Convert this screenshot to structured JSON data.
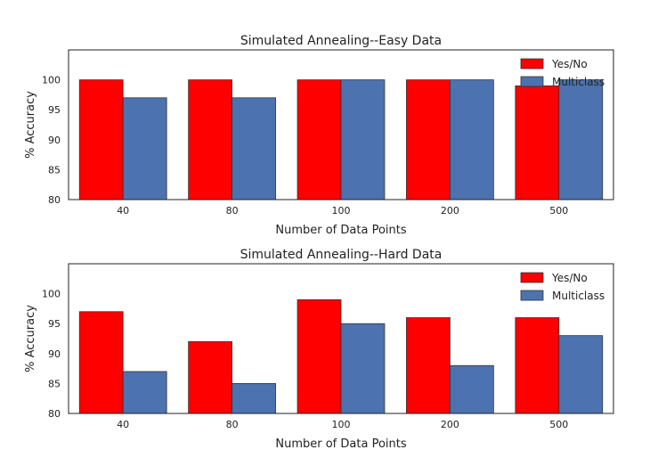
{
  "chart_data": [
    {
      "type": "bar",
      "title": "Simulated Annealing--Easy Data",
      "xlabel": "Number of Data Points",
      "ylabel": "% Accuracy",
      "categories": [
        "40",
        "80",
        "100",
        "200",
        "500"
      ],
      "ylim": [
        80,
        105
      ],
      "yticks": [
        80,
        85,
        90,
        95,
        100
      ],
      "grid": false,
      "legend_position": "top-right",
      "series": [
        {
          "name": "Yes/No",
          "color": "#ff0000",
          "values": [
            100,
            100,
            100,
            100,
            99
          ]
        },
        {
          "name": "Multiclass",
          "color": "#4c72b0",
          "values": [
            97,
            97,
            100,
            100,
            100
          ]
        }
      ]
    },
    {
      "type": "bar",
      "title": "Simulated Annealing--Hard Data",
      "xlabel": "Number of Data Points",
      "ylabel": "% Accuracy",
      "categories": [
        "40",
        "80",
        "100",
        "200",
        "500"
      ],
      "ylim": [
        80,
        105
      ],
      "yticks": [
        80,
        85,
        90,
        95,
        100
      ],
      "grid": false,
      "legend_position": "top-right",
      "series": [
        {
          "name": "Yes/No",
          "color": "#ff0000",
          "values": [
            97,
            92,
            99,
            96,
            96
          ]
        },
        {
          "name": "Multiclass",
          "color": "#4c72b0",
          "values": [
            87,
            85,
            95,
            88,
            93
          ]
        }
      ]
    }
  ]
}
